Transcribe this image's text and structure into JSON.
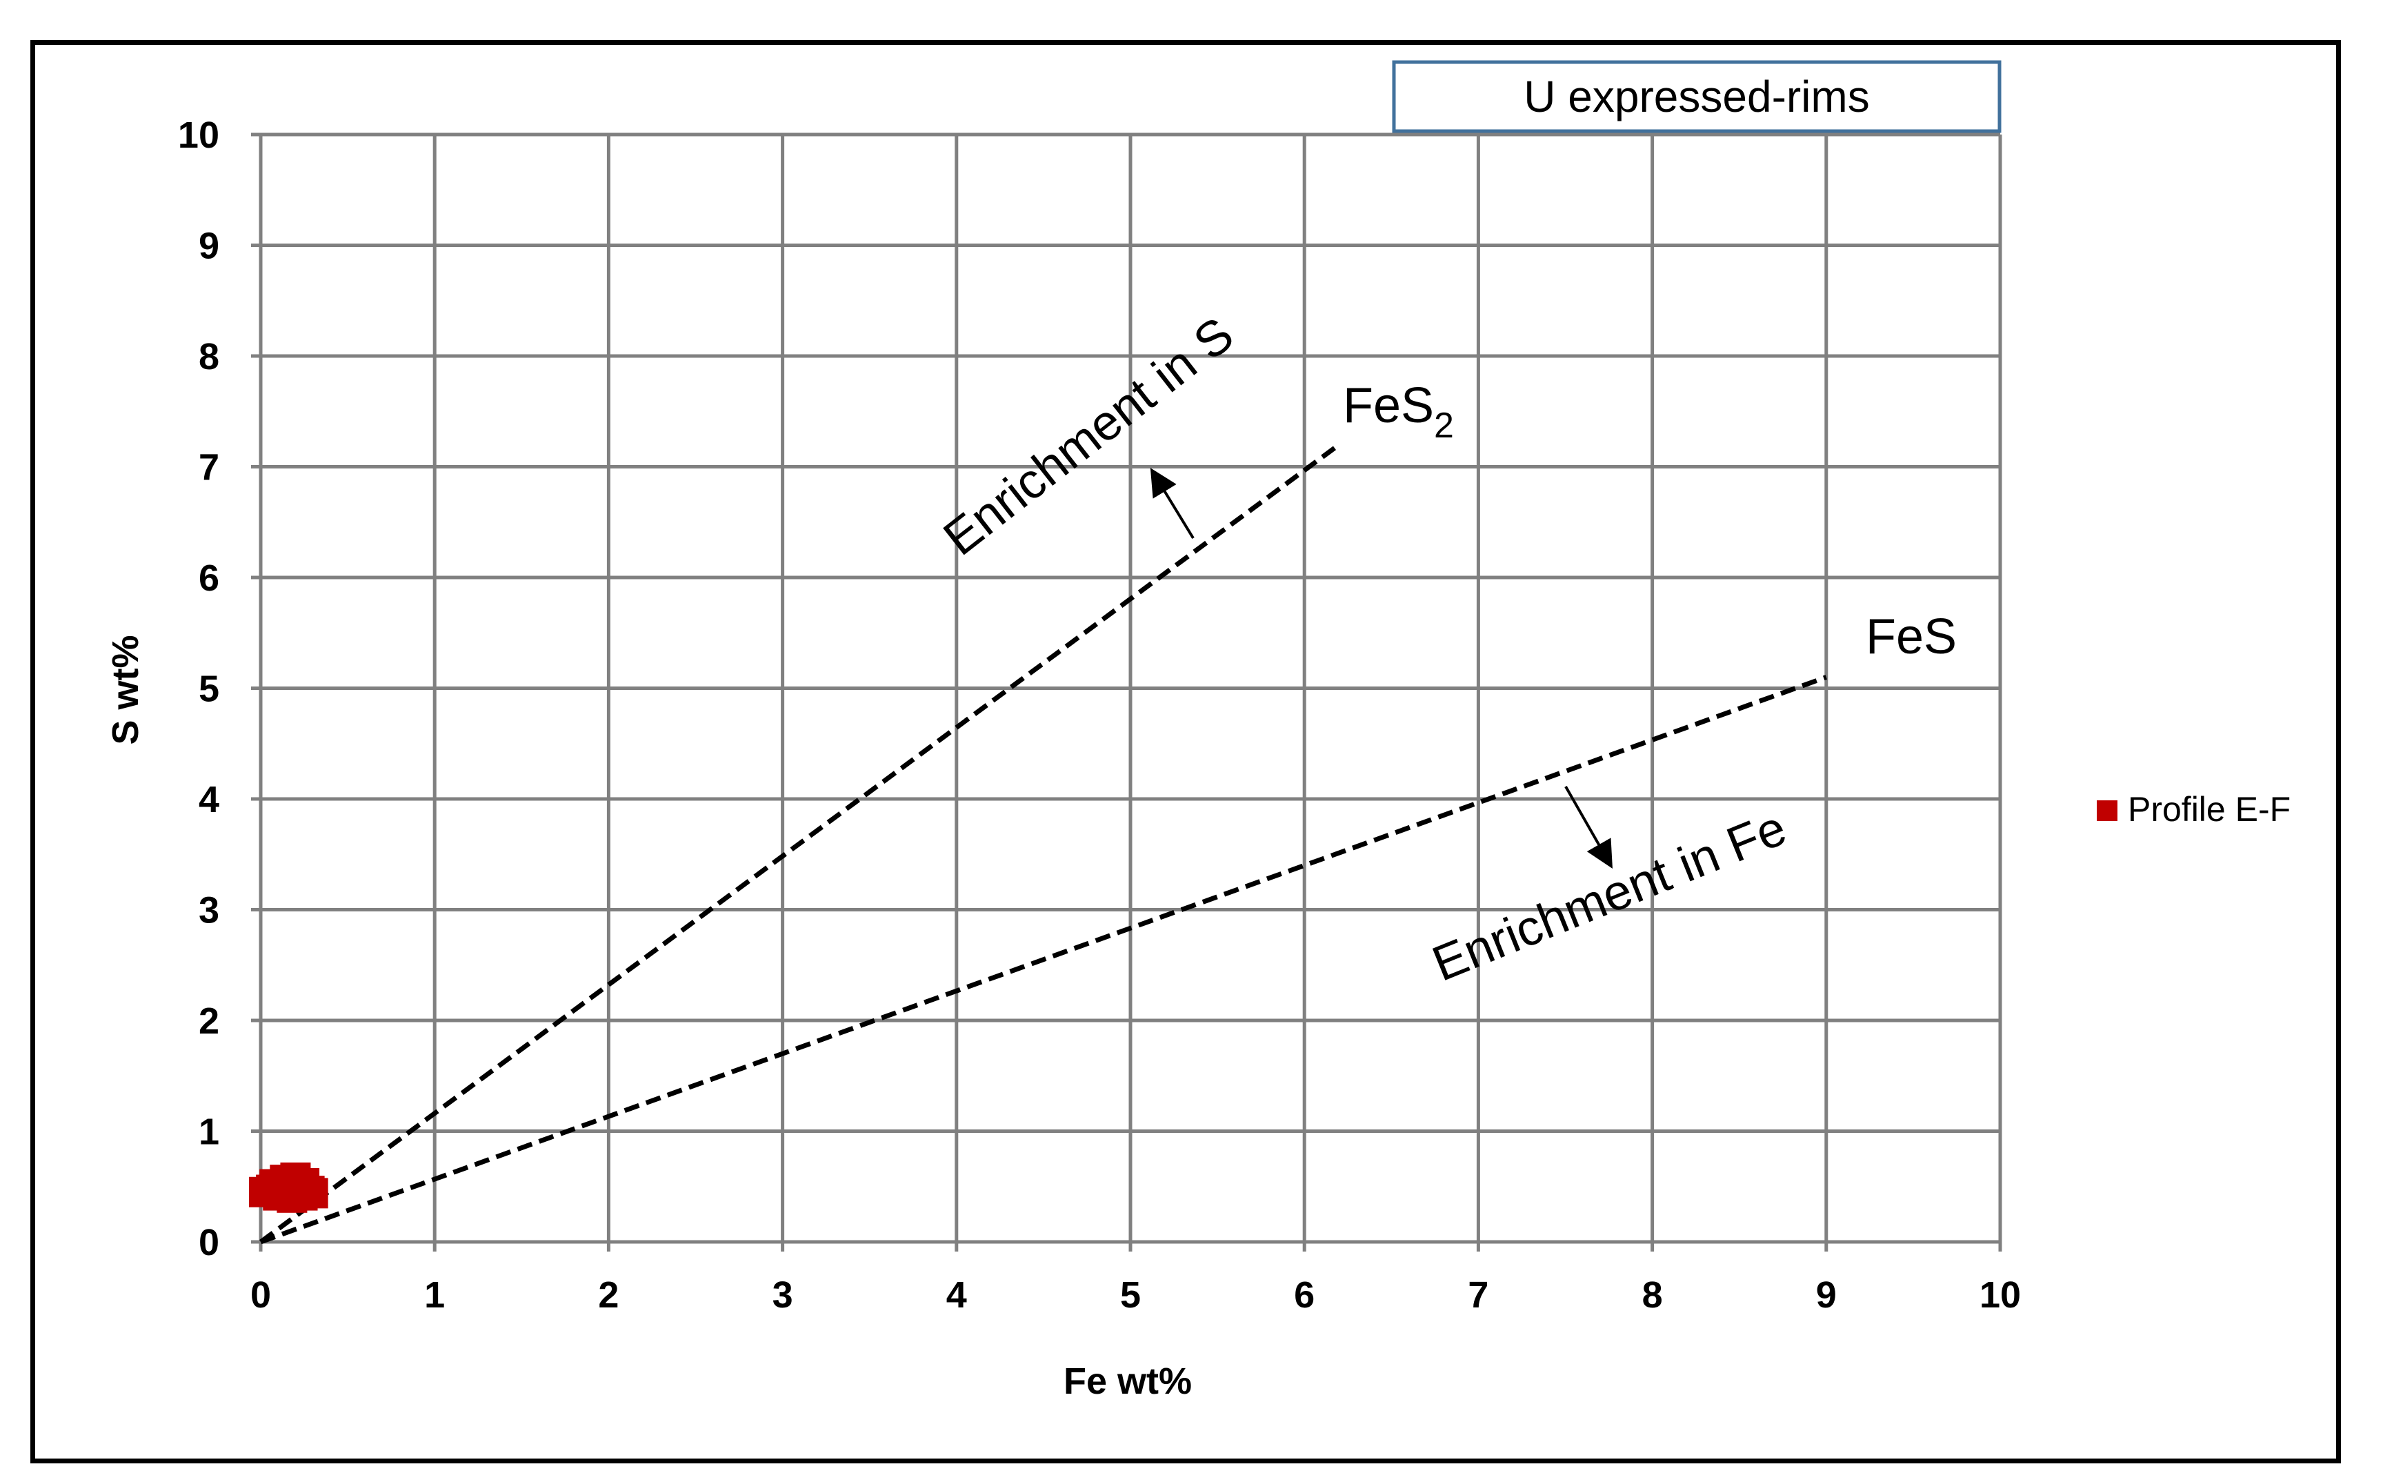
{
  "chart_data": {
    "type": "scatter",
    "title": "U expressed-rims",
    "xlabel": "Fe wt%",
    "ylabel": "S wt%",
    "xlim": [
      0,
      10
    ],
    "ylim": [
      0,
      10
    ],
    "x_ticks": [
      "0",
      "1",
      "2",
      "3",
      "4",
      "5",
      "6",
      "7",
      "8",
      "9",
      "10"
    ],
    "y_ticks": [
      "0",
      "1",
      "2",
      "3",
      "4",
      "5",
      "6",
      "7",
      "8",
      "9",
      "10"
    ],
    "grid": true,
    "legend_position": "right",
    "colors": {
      "series": "#c00000",
      "grid": "#808080",
      "reference": "#000000"
    },
    "series": [
      {
        "name": "Profile E-F",
        "points": [
          [
            0.02,
            0.45
          ],
          [
            0.06,
            0.47
          ],
          [
            0.08,
            0.52
          ],
          [
            0.1,
            0.42
          ],
          [
            0.12,
            0.5
          ],
          [
            0.14,
            0.56
          ],
          [
            0.15,
            0.45
          ],
          [
            0.18,
            0.4
          ],
          [
            0.18,
            0.52
          ],
          [
            0.2,
            0.58
          ],
          [
            0.22,
            0.48
          ],
          [
            0.24,
            0.42
          ],
          [
            0.25,
            0.53
          ],
          [
            0.28,
            0.46
          ],
          [
            0.3,
            0.44
          ]
        ]
      }
    ],
    "reference_lines": [
      {
        "label_main": "FeS",
        "label_sub": "2",
        "from": [
          0,
          0
        ],
        "to": [
          6.2,
          7.2
        ]
      },
      {
        "label_main": "FeS",
        "label_sub": "",
        "from": [
          0,
          0
        ],
        "to": [
          9.0,
          5.1
        ]
      }
    ],
    "annotations": [
      {
        "id": "enrich-s",
        "text": "Enrichment in S"
      },
      {
        "id": "enrich-fe",
        "text": "Enrichment in Fe"
      }
    ]
  }
}
